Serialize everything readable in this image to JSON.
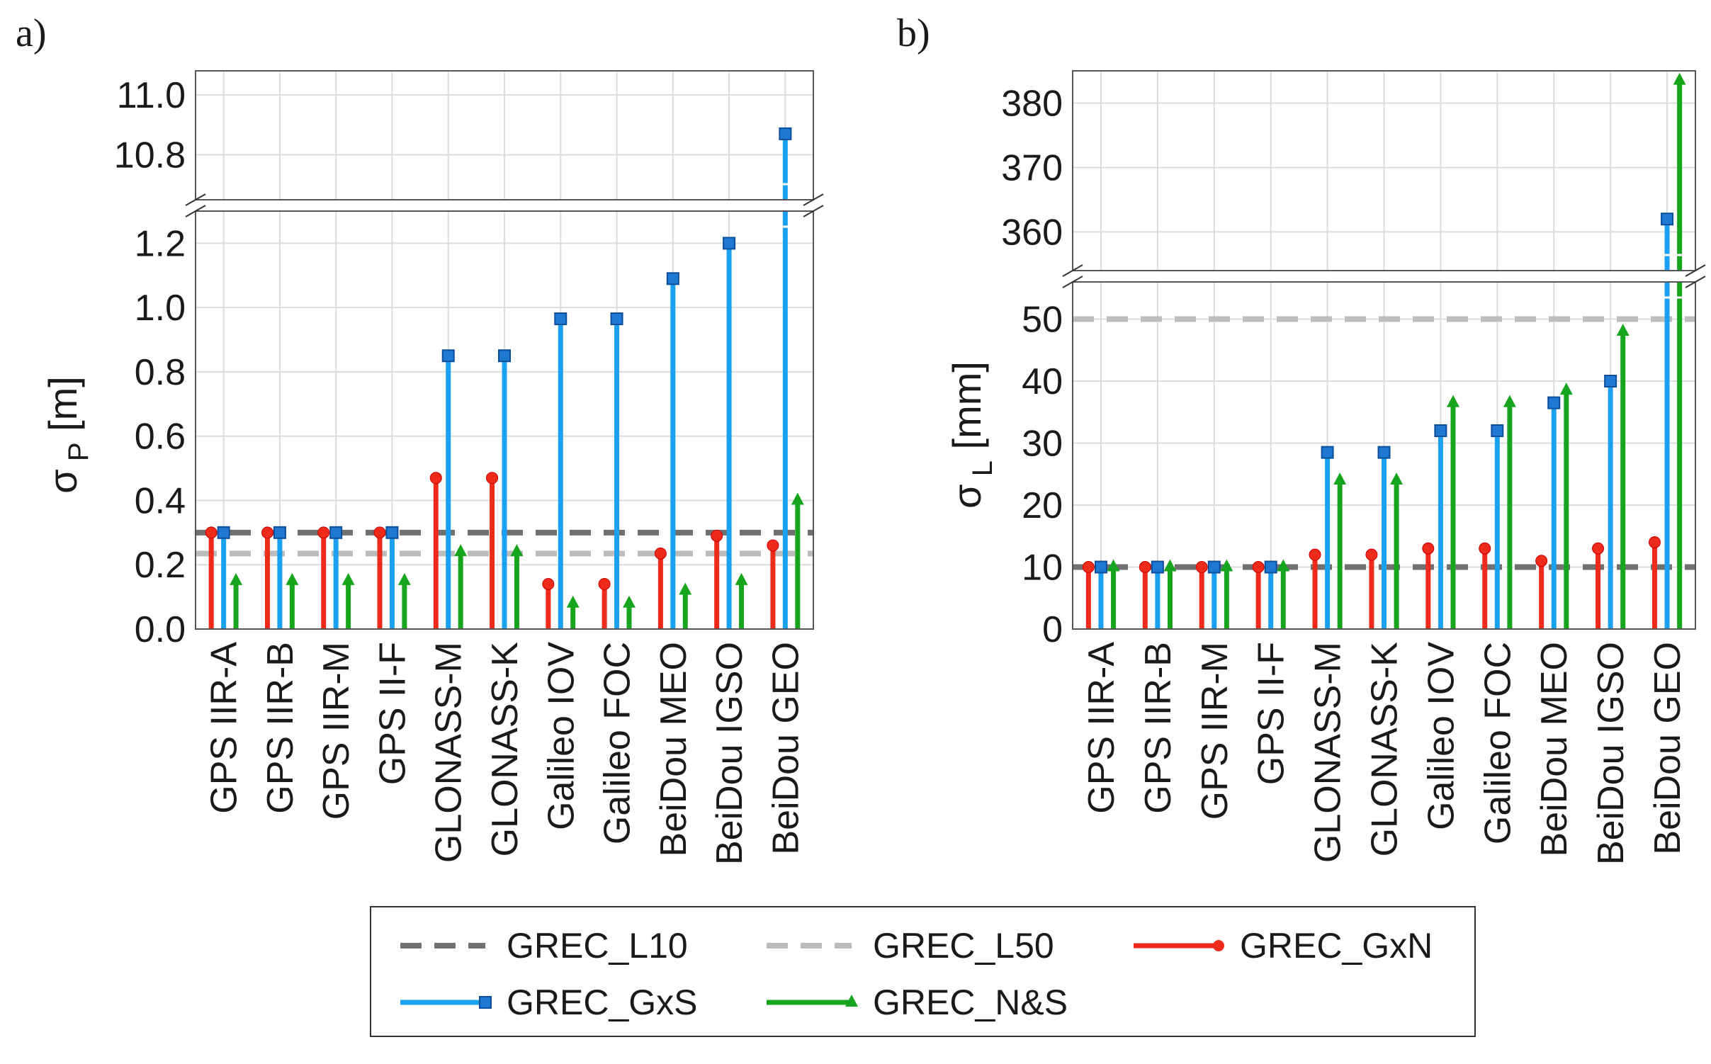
{
  "panels": [
    {
      "letter": "a)"
    },
    {
      "letter": "b)"
    }
  ],
  "chart_data": [
    {
      "type": "bar",
      "panel": "a)",
      "ylabel": "σ",
      "ylabel_sub": "P",
      "ylabel_unit": "[m]",
      "axis_break": true,
      "ylim_lower": [
        0.0,
        1.3
      ],
      "ylim_upper": [
        10.65,
        11.08
      ],
      "yticks_lower": [
        "0.0",
        "0.2",
        "0.4",
        "0.6",
        "0.8",
        "1.0",
        "1.2"
      ],
      "yticks_upper": [
        "10.8",
        "11.0"
      ],
      "grid": true,
      "categories": [
        "GPS IIR-A",
        "GPS IIR-B",
        "GPS IIR-M",
        "GPS II-F",
        "GLONASS-M",
        "GLONASS-K",
        "Galileo IOV",
        "Galileo FOC",
        "BeiDou MEO",
        "BeiDou IGSO",
        "BeiDou GEO"
      ],
      "reference_lines": [
        {
          "name": "GREC_L10",
          "value": 0.3,
          "color": "#707070"
        },
        {
          "name": "GREC_L50",
          "value": 0.235,
          "color": "#bdbdbd"
        }
      ],
      "series": [
        {
          "name": "GREC_GxN",
          "color": "#ee2a1b",
          "marker": "circle",
          "values": [
            0.3,
            0.3,
            0.3,
            0.3,
            0.47,
            0.47,
            0.14,
            0.14,
            0.235,
            0.29,
            0.26
          ]
        },
        {
          "name": "GREC_GxS",
          "color": "#1ba1f2",
          "marker": "square",
          "values": [
            0.3,
            0.3,
            0.3,
            0.3,
            0.85,
            0.85,
            0.965,
            0.965,
            1.09,
            1.2,
            10.87
          ]
        },
        {
          "name": "GREC_N&S",
          "color": "#16a51c",
          "marker": "triangle",
          "values": [
            0.15,
            0.15,
            0.15,
            0.15,
            0.24,
            0.24,
            0.08,
            0.08,
            0.12,
            0.15,
            0.4
          ]
        }
      ]
    },
    {
      "type": "bar",
      "panel": "b)",
      "ylabel": "σ",
      "ylabel_sub": "L",
      "ylabel_unit": "[mm]",
      "axis_break": true,
      "ylim_lower": [
        0,
        56
      ],
      "ylim_upper": [
        354,
        385
      ],
      "yticks_lower": [
        "0",
        "10",
        "20",
        "30",
        "40",
        "50"
      ],
      "yticks_upper": [
        "360",
        "370",
        "380"
      ],
      "grid": true,
      "categories": [
        "GPS IIR-A",
        "GPS IIR-B",
        "GPS IIR-M",
        "GPS II-F",
        "GLONASS-M",
        "GLONASS-K",
        "Galileo IOV",
        "Galileo FOC",
        "BeiDou MEO",
        "BeiDou IGSO",
        "BeiDou GEO"
      ],
      "reference_lines": [
        {
          "name": "GREC_L10",
          "value": 10,
          "color": "#707070"
        },
        {
          "name": "GREC_L50",
          "value": 50,
          "color": "#bdbdbd"
        }
      ],
      "series": [
        {
          "name": "GREC_GxN",
          "color": "#ee2a1b",
          "marker": "circle",
          "values": [
            10,
            10,
            10,
            10,
            12,
            12,
            13,
            13,
            11,
            13,
            14
          ]
        },
        {
          "name": "GREC_GxS",
          "color": "#1ba1f2",
          "marker": "square",
          "values": [
            10,
            10,
            10,
            10,
            28.5,
            28.5,
            32,
            32,
            36.5,
            40,
            362
          ]
        },
        {
          "name": "GREC_N&S",
          "color": "#16a51c",
          "marker": "triangle",
          "values": [
            10,
            10,
            10,
            10,
            24,
            24,
            36.5,
            36.5,
            38.5,
            48,
            383.5
          ]
        }
      ]
    }
  ],
  "legend": {
    "placement": "bottom-center",
    "entries": [
      {
        "label": "GREC_L10",
        "style": "dashed",
        "color": "#707070"
      },
      {
        "label": "GREC_L50",
        "style": "dashed",
        "color": "#bdbdbd"
      },
      {
        "label": "GREC_GxN",
        "style": "solid-circle",
        "color": "#ee2a1b"
      },
      {
        "label": "GREC_GxS",
        "style": "solid-square",
        "color": "#1ba1f2"
      },
      {
        "label": "GREC_N&S",
        "style": "solid-triangle",
        "color": "#16a51c"
      }
    ]
  }
}
